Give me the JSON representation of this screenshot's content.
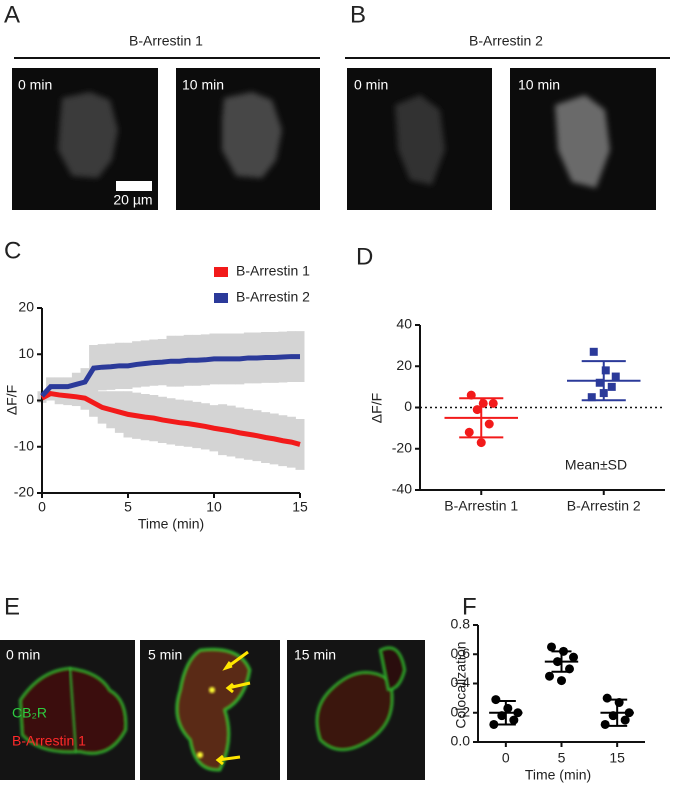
{
  "figure": {
    "panels": [
      {
        "letter": "A",
        "heading": "B-Arrestin 1",
        "images": [
          "0 min",
          "10 min"
        ],
        "scale_bar": "20 µm"
      },
      {
        "letter": "B",
        "heading": "B-Arrestin 2",
        "images": [
          "0 min",
          "10 min"
        ]
      },
      {
        "letter": "C"
      },
      {
        "letter": "D"
      },
      {
        "letter": "E",
        "images": [
          "0 min",
          "5 min",
          "15 min"
        ],
        "channels": [
          "CB₂R",
          "B-Arrestin 1"
        ]
      },
      {
        "letter": "F"
      }
    ]
  },
  "chart_data": [
    {
      "type": "line",
      "x_label": "Time (min)",
      "y_label": "ΔF/F",
      "x": [
        0,
        0.5,
        1,
        1.5,
        2,
        2.5,
        3,
        3.5,
        4,
        4.5,
        5,
        5.5,
        6,
        6.5,
        7,
        7.5,
        8,
        8.5,
        9,
        9.5,
        10,
        10.5,
        11,
        11.5,
        12,
        12.5,
        13,
        13.5,
        14,
        14.5,
        15
      ],
      "xlim": [
        0,
        15
      ],
      "xticks": [
        0,
        5,
        10,
        15
      ],
      "ylim": [
        -20,
        20
      ],
      "yticks": [
        -20,
        -10,
        0,
        10,
        20
      ],
      "legend": "upper right",
      "error_color": "#d4d4d4",
      "series": [
        {
          "name": "B-Arrestin 1",
          "color": "#f21a1a",
          "values": [
            0.5,
            1.5,
            1.2,
            1.0,
            0.8,
            0.5,
            -0.5,
            -1.5,
            -2.0,
            -2.5,
            -3.0,
            -3.3,
            -3.6,
            -3.8,
            -4.2,
            -4.5,
            -4.8,
            -5.0,
            -5.3,
            -5.6,
            -6.0,
            -6.3,
            -6.6,
            -7.0,
            -7.3,
            -7.6,
            -8.0,
            -8.3,
            -8.7,
            -9.0,
            -9.5
          ],
          "error": [
            1,
            1.5,
            2,
            2,
            2,
            2.5,
            3,
            3.5,
            4,
            4.5,
            5,
            5,
            5,
            5,
            5,
            5,
            5,
            5,
            5,
            5,
            5,
            5.5,
            5.5,
            5.5,
            5.5,
            5.5,
            5.5,
            5.5,
            5.5,
            5.5,
            5.5
          ]
        },
        {
          "name": "B-Arrestin 2",
          "color": "#2b3a9a",
          "values": [
            1,
            3,
            3,
            3,
            3.5,
            4,
            7,
            7.2,
            7.3,
            7.5,
            7.5,
            7.8,
            8,
            8.2,
            8.3,
            8.5,
            8.5,
            8.7,
            8.7,
            8.8,
            9,
            9,
            9,
            9,
            9.2,
            9.2,
            9.3,
            9.3,
            9.4,
            9.5,
            9.5
          ],
          "error": [
            1,
            2,
            2,
            2,
            2.5,
            3,
            5,
            5,
            5,
            5,
            5,
            5,
            5,
            5,
            5,
            5.5,
            5.5,
            5.5,
            5.5,
            5.5,
            5.5,
            5.5,
            5.5,
            5.5,
            5.5,
            5.5,
            5.5,
            5.5,
            5.5,
            5.5,
            5.5
          ]
        }
      ]
    },
    {
      "type": "dot",
      "y_label": "ΔF/F",
      "annotation": "Mean±SD",
      "zero_line": true,
      "categories": [
        "B-Arrestin 1",
        "B-Arrestin 2"
      ],
      "ylim": [
        -40,
        40
      ],
      "yticks": [
        -40,
        -20,
        0,
        20,
        40
      ],
      "groups": [
        {
          "color": "#f21a1a",
          "marker": "circle",
          "values": [
            6,
            2,
            2,
            -1,
            -8,
            -12,
            -17
          ],
          "mean": -5,
          "sd": 9.5
        },
        {
          "color": "#2b3a9a",
          "marker": "square",
          "values": [
            27,
            18,
            15,
            12,
            10,
            5,
            7
          ],
          "mean": 13,
          "sd": 9.5
        }
      ]
    },
    {
      "type": "dot",
      "x_label": "Time (min)",
      "y_label": "Colocalization",
      "zero_line": false,
      "categories": [
        "0",
        "5",
        "15"
      ],
      "ylim": [
        0,
        0.8
      ],
      "yticks": [
        {
          "value": 0,
          "label": "0.0"
        },
        0.2,
        0.4,
        0.6,
        0.8
      ],
      "groups": [
        {
          "color": "#000000",
          "marker": "circle",
          "values": [
            0.29,
            0.23,
            0.2,
            0.18,
            0.15,
            0.12
          ],
          "mean": 0.2,
          "sd": 0.08
        },
        {
          "color": "#000000",
          "marker": "circle",
          "values": [
            0.65,
            0.62,
            0.58,
            0.55,
            0.5,
            0.45,
            0.42
          ],
          "mean": 0.55,
          "sd": 0.07
        },
        {
          "color": "#000000",
          "marker": "circle",
          "values": [
            0.3,
            0.27,
            0.2,
            0.18,
            0.15,
            0.12
          ],
          "mean": 0.2,
          "sd": 0.09
        }
      ]
    }
  ]
}
